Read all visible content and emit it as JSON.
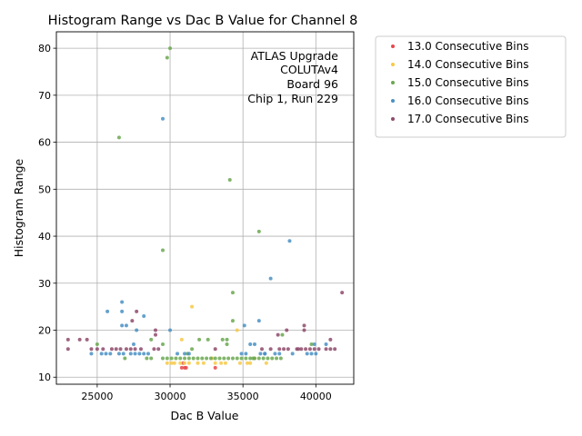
{
  "chart_data": {
    "type": "scatter",
    "title": "Histogram Range vs Dac B Value for Channel 8",
    "xlabel": "Dac B Value",
    "ylabel": "Histogram Range",
    "xlim": [
      22200,
      42600
    ],
    "ylim": [
      8.5,
      83.5
    ],
    "xticks": [
      "25000",
      "30000",
      "35000",
      "40000"
    ],
    "xtick_values": [
      25000,
      30000,
      35000,
      40000
    ],
    "yticks": [
      "10",
      "20",
      "30",
      "40",
      "50",
      "60",
      "70",
      "80"
    ],
    "ytick_values": [
      10,
      20,
      30,
      40,
      50,
      60,
      70,
      80
    ],
    "grid": true,
    "legend_position": "outside-upper-right",
    "annotation": [
      "ATLAS Upgrade",
      "COLUTAv4",
      "Board 96",
      "Chip 1, Run 229"
    ],
    "series": [
      {
        "name": "13.0 Consecutive Bins",
        "color": "#e8474a",
        "points": [
          [
            30800,
            12
          ],
          [
            31000,
            12
          ],
          [
            31100,
            12
          ],
          [
            33100,
            12
          ],
          [
            30900,
            13
          ]
        ]
      },
      {
        "name": "14.0 Consecutive Bins",
        "color": "#f7c948",
        "points": [
          [
            29800,
            13
          ],
          [
            30100,
            13
          ],
          [
            30700,
            13
          ],
          [
            31000,
            13
          ],
          [
            31300,
            13
          ],
          [
            31900,
            13
          ],
          [
            32300,
            13
          ],
          [
            33100,
            13
          ],
          [
            33500,
            13
          ],
          [
            33800,
            13
          ],
          [
            34800,
            13
          ],
          [
            35300,
            13
          ],
          [
            35500,
            13
          ],
          [
            36600,
            13
          ],
          [
            30300,
            13
          ],
          [
            30800,
            18
          ],
          [
            31500,
            25
          ],
          [
            34600,
            20
          ],
          [
            35800,
            14
          ],
          [
            32900,
            14
          ]
        ]
      },
      {
        "name": "15.0 Consecutive Bins",
        "color": "#6aa84f",
        "points": [
          [
            29800,
            78
          ],
          [
            30000,
            80
          ],
          [
            26500,
            61
          ],
          [
            34100,
            52
          ],
          [
            36100,
            41
          ],
          [
            29500,
            37
          ],
          [
            34300,
            28
          ],
          [
            34300,
            22
          ],
          [
            25000,
            17
          ],
          [
            26900,
            14
          ],
          [
            28400,
            14
          ],
          [
            28700,
            14
          ],
          [
            28700,
            18
          ],
          [
            29500,
            17
          ],
          [
            29500,
            14
          ],
          [
            29800,
            14
          ],
          [
            30100,
            14
          ],
          [
            30400,
            14
          ],
          [
            30700,
            14
          ],
          [
            31000,
            14
          ],
          [
            31300,
            14
          ],
          [
            31600,
            14
          ],
          [
            31900,
            14
          ],
          [
            32200,
            14
          ],
          [
            32500,
            14
          ],
          [
            32800,
            14
          ],
          [
            33100,
            14
          ],
          [
            33400,
            14
          ],
          [
            33700,
            14
          ],
          [
            34000,
            14
          ],
          [
            34300,
            14
          ],
          [
            34600,
            14
          ],
          [
            34900,
            14
          ],
          [
            35200,
            14
          ],
          [
            35500,
            14
          ],
          [
            35800,
            14
          ],
          [
            36100,
            14
          ],
          [
            36400,
            14
          ],
          [
            36700,
            14
          ],
          [
            37000,
            14
          ],
          [
            37300,
            14
          ],
          [
            37600,
            14
          ],
          [
            31500,
            16
          ],
          [
            32000,
            18
          ],
          [
            32600,
            18
          ],
          [
            33600,
            18
          ],
          [
            33900,
            17
          ],
          [
            33900,
            18
          ],
          [
            31200,
            15
          ],
          [
            35700,
            14
          ],
          [
            37700,
            19
          ],
          [
            39700,
            17
          ]
        ]
      },
      {
        "name": "16.0 Consecutive Bins",
        "color": "#4a90c4",
        "points": [
          [
            29500,
            65
          ],
          [
            38200,
            39
          ],
          [
            36900,
            31
          ],
          [
            36100,
            22
          ],
          [
            35100,
            21
          ],
          [
            26700,
            26
          ],
          [
            26700,
            24
          ],
          [
            25700,
            24
          ],
          [
            26700,
            21
          ],
          [
            27000,
            21
          ],
          [
            28200,
            23
          ],
          [
            27700,
            20
          ],
          [
            30000,
            20
          ],
          [
            24600,
            15
          ],
          [
            25300,
            15
          ],
          [
            25600,
            15
          ],
          [
            25900,
            15
          ],
          [
            26500,
            15
          ],
          [
            26800,
            15
          ],
          [
            27300,
            15
          ],
          [
            27600,
            15
          ],
          [
            27900,
            15
          ],
          [
            28200,
            15
          ],
          [
            28500,
            15
          ],
          [
            30500,
            15
          ],
          [
            31000,
            15
          ],
          [
            31300,
            15
          ],
          [
            34900,
            15
          ],
          [
            35200,
            15
          ],
          [
            36200,
            15
          ],
          [
            36500,
            15
          ],
          [
            37200,
            15
          ],
          [
            37500,
            15
          ],
          [
            38400,
            15
          ],
          [
            39400,
            15
          ],
          [
            39700,
            15
          ],
          [
            40000,
            15
          ],
          [
            27500,
            17
          ],
          [
            35500,
            17
          ],
          [
            35800,
            17
          ],
          [
            36500,
            15
          ],
          [
            40700,
            17
          ],
          [
            39900,
            17
          ]
        ]
      },
      {
        "name": "17.0 Consecutive Bins",
        "color": "#8e4a6b",
        "points": [
          [
            23000,
            18
          ],
          [
            23800,
            18
          ],
          [
            24300,
            18
          ],
          [
            23000,
            16
          ],
          [
            24600,
            16
          ],
          [
            25000,
            16
          ],
          [
            25400,
            16
          ],
          [
            26000,
            16
          ],
          [
            26300,
            16
          ],
          [
            26600,
            16
          ],
          [
            27000,
            16
          ],
          [
            27300,
            16
          ],
          [
            27600,
            16
          ],
          [
            28000,
            16
          ],
          [
            28900,
            16
          ],
          [
            29200,
            16
          ],
          [
            29000,
            19
          ],
          [
            29000,
            20
          ],
          [
            27700,
            24
          ],
          [
            27400,
            22
          ],
          [
            36300,
            16
          ],
          [
            36900,
            16
          ],
          [
            37500,
            16
          ],
          [
            37800,
            16
          ],
          [
            38100,
            16
          ],
          [
            38700,
            16
          ],
          [
            39000,
            16
          ],
          [
            39300,
            16
          ],
          [
            39600,
            16
          ],
          [
            39900,
            16
          ],
          [
            40200,
            16
          ],
          [
            40700,
            16
          ],
          [
            41000,
            16
          ],
          [
            41300,
            16
          ],
          [
            37400,
            19
          ],
          [
            38000,
            20
          ],
          [
            39200,
            20
          ],
          [
            39200,
            21
          ],
          [
            41000,
            18
          ],
          [
            41800,
            28
          ],
          [
            33100,
            16
          ],
          [
            38800,
            16
          ]
        ]
      }
    ]
  }
}
